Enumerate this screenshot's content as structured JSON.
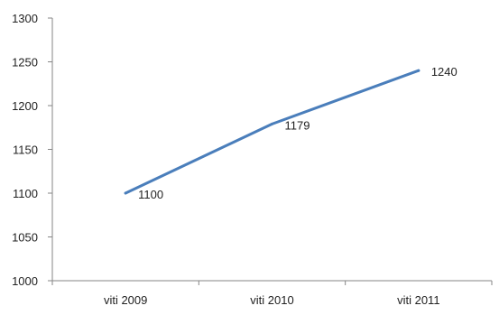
{
  "chart_data": {
    "type": "line",
    "title": "",
    "xlabel": "",
    "ylabel": "",
    "categories": [
      "viti 2009",
      "viti 2010",
      "viti 2011"
    ],
    "series": [
      {
        "values": [
          1100,
          1179,
          1240
        ],
        "color": "#4a7ebb"
      }
    ],
    "data_labels": [
      "1100",
      "1179",
      "1240"
    ],
    "ylim": [
      1000,
      1300
    ],
    "yticks": [
      "1000",
      "1050",
      "1100",
      "1150",
      "1200",
      "1250",
      "1300"
    ],
    "grid": false,
    "legend": "none",
    "axis_color": "#868686"
  }
}
